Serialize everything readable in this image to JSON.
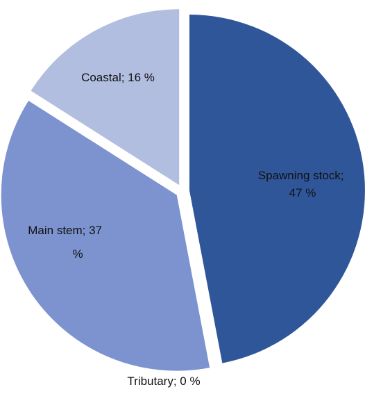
{
  "chart_data": {
    "type": "pie",
    "title": "",
    "exploded": true,
    "legend": "none",
    "slices": [
      {
        "name": "Spawning stock",
        "value": 47,
        "color": "#30569a",
        "label_lines": [
          "Spawning stock;",
          "47 %"
        ]
      },
      {
        "name": "Tributary",
        "value": 0,
        "color": "#5a78c0",
        "label_lines": [
          "Tributary; 0 %"
        ]
      },
      {
        "name": "Main stem",
        "value": 37,
        "color": "#7c93cf",
        "label_lines": [
          "Main stem; 37",
          "%"
        ]
      },
      {
        "name": "Coastal",
        "value": 16,
        "color": "#b2bedf",
        "label_lines": [
          "Coastal; 16 %"
        ]
      }
    ]
  }
}
